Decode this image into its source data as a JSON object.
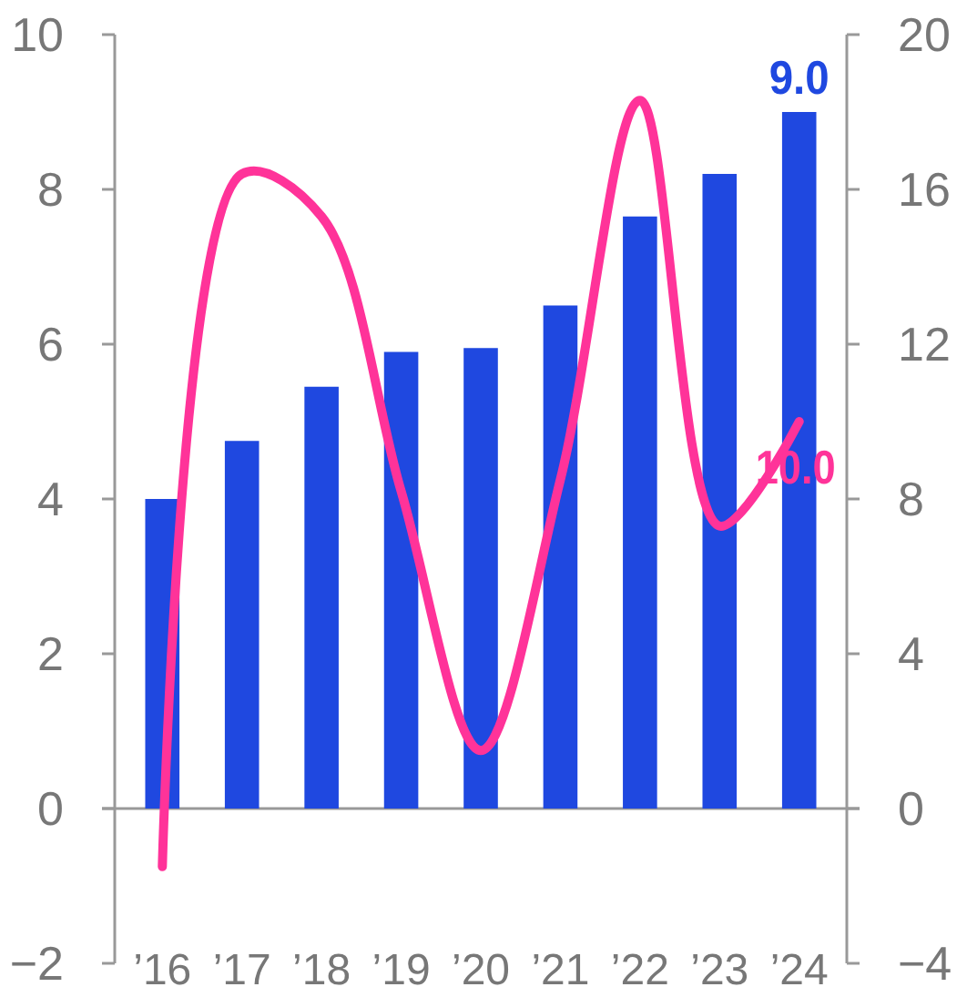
{
  "chart_data": {
    "type": "bar",
    "categories": [
      "’16",
      "’17",
      "’18",
      "’19",
      "’20",
      "’21",
      "’22",
      "’23",
      "’24"
    ],
    "series": [
      {
        "color": "#1f48e0",
        "values": [
          4.0,
          4.75,
          5.45,
          5.9,
          5.95,
          6.5,
          7.65,
          8.2,
          9.0
        ],
        "value_labels": [
          null,
          null,
          null,
          null,
          null,
          null,
          null,
          null,
          "9.0"
        ]
      },
      {
        "type": "line",
        "axis": "y2",
        "color": "#ff3399",
        "values": [
          -1.5,
          16.4,
          15.3,
          8.2,
          1.5,
          8.5,
          18.3,
          7.3,
          10.0
        ],
        "value_labels": [
          null,
          null,
          null,
          null,
          null,
          null,
          null,
          null,
          "10.0"
        ]
      }
    ],
    "ylim": [
      -2,
      10
    ],
    "yticks": [
      -2,
      0,
      2,
      4,
      6,
      8,
      10
    ],
    "y2lim": [
      -4,
      20
    ],
    "y2ticks": [
      -4,
      0,
      4,
      8,
      12,
      16,
      20
    ]
  }
}
